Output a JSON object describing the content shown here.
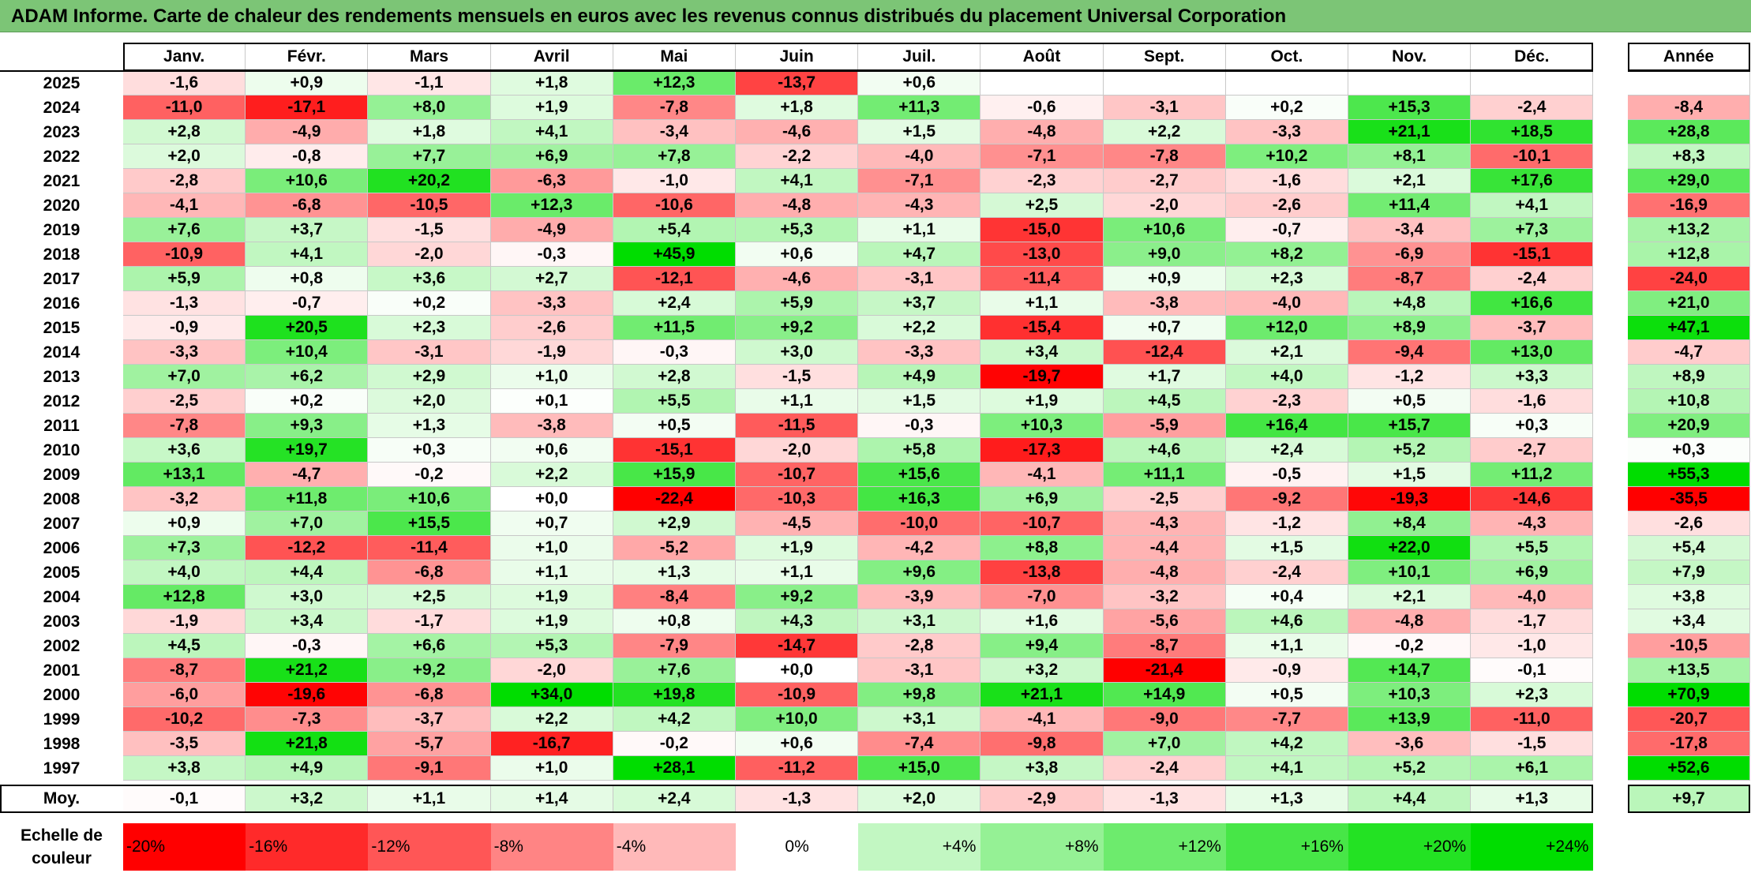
{
  "title": "ADAM Informe. Carte de chaleur des rendements mensuels en euros avec les revenus connus distribués du placement Universal Corporation",
  "chart_data": {
    "type": "heatmap",
    "title": "ADAM Informe. Carte de chaleur des rendements mensuels en euros avec les revenus connus distribués du placement Universal Corporation",
    "columns": [
      "Janv.",
      "Févr.",
      "Mars",
      "Avril",
      "Mai",
      "Juin",
      "Juil.",
      "Août",
      "Sept.",
      "Oct.",
      "Nov.",
      "Déc."
    ],
    "annual_label": "Année",
    "rows": [
      {
        "year": "2025",
        "months": [
          "-1,6",
          "+0,9",
          "-1,1",
          "+1,8",
          "+12,3",
          "-13,7",
          "+0,6",
          "",
          "",
          "",
          "",
          ""
        ],
        "annual": ""
      },
      {
        "year": "2024",
        "months": [
          "-11,0",
          "-17,1",
          "+8,0",
          "+1,9",
          "-7,8",
          "+1,8",
          "+11,3",
          "-0,6",
          "-3,1",
          "+0,2",
          "+15,3",
          "-2,4"
        ],
        "annual": "-8,4"
      },
      {
        "year": "2023",
        "months": [
          "+2,8",
          "-4,9",
          "+1,8",
          "+4,1",
          "-3,4",
          "-4,6",
          "+1,5",
          "-4,8",
          "+2,2",
          "-3,3",
          "+21,1",
          "+18,5"
        ],
        "annual": "+28,8"
      },
      {
        "year": "2022",
        "months": [
          "+2,0",
          "-0,8",
          "+7,7",
          "+6,9",
          "+7,8",
          "-2,2",
          "-4,0",
          "-7,1",
          "-7,8",
          "+10,2",
          "+8,1",
          "-10,1"
        ],
        "annual": "+8,3"
      },
      {
        "year": "2021",
        "months": [
          "-2,8",
          "+10,6",
          "+20,2",
          "-6,3",
          "-1,0",
          "+4,1",
          "-7,1",
          "-2,3",
          "-2,7",
          "-1,6",
          "+2,1",
          "+17,6"
        ],
        "annual": "+29,0"
      },
      {
        "year": "2020",
        "months": [
          "-4,1",
          "-6,8",
          "-10,5",
          "+12,3",
          "-10,6",
          "-4,8",
          "-4,3",
          "+2,5",
          "-2,0",
          "-2,6",
          "+11,4",
          "+4,1"
        ],
        "annual": "-16,9"
      },
      {
        "year": "2019",
        "months": [
          "+7,6",
          "+3,7",
          "-1,5",
          "-4,9",
          "+5,4",
          "+5,3",
          "+1,1",
          "-15,0",
          "+10,6",
          "-0,7",
          "-3,4",
          "+7,3"
        ],
        "annual": "+13,2"
      },
      {
        "year": "2018",
        "months": [
          "-10,9",
          "+4,1",
          "-2,0",
          "-0,3",
          "+45,9",
          "+0,6",
          "+4,7",
          "-13,0",
          "+9,0",
          "+8,2",
          "-6,9",
          "-15,1"
        ],
        "annual": "+12,8"
      },
      {
        "year": "2017",
        "months": [
          "+5,9",
          "+0,8",
          "+3,6",
          "+2,7",
          "-12,1",
          "-4,6",
          "-3,1",
          "-11,4",
          "+0,9",
          "+2,3",
          "-8,7",
          "-2,4"
        ],
        "annual": "-24,0"
      },
      {
        "year": "2016",
        "months": [
          "-1,3",
          "-0,7",
          "+0,2",
          "-3,3",
          "+2,4",
          "+5,9",
          "+3,7",
          "+1,1",
          "-3,8",
          "-4,0",
          "+4,8",
          "+16,6"
        ],
        "annual": "+21,0"
      },
      {
        "year": "2015",
        "months": [
          "-0,9",
          "+20,5",
          "+2,3",
          "-2,6",
          "+11,5",
          "+9,2",
          "+2,2",
          "-15,4",
          "+0,7",
          "+12,0",
          "+8,9",
          "-3,7"
        ],
        "annual": "+47,1"
      },
      {
        "year": "2014",
        "months": [
          "-3,3",
          "+10,4",
          "-3,1",
          "-1,9",
          "-0,3",
          "+3,0",
          "-3,3",
          "+3,4",
          "-12,4",
          "+2,1",
          "-9,4",
          "+13,0"
        ],
        "annual": "-4,7"
      },
      {
        "year": "2013",
        "months": [
          "+7,0",
          "+6,2",
          "+2,9",
          "+1,0",
          "+2,8",
          "-1,5",
          "+4,9",
          "-19,7",
          "+1,7",
          "+4,0",
          "-1,2",
          "+3,3"
        ],
        "annual": "+8,9"
      },
      {
        "year": "2012",
        "months": [
          "-2,5",
          "+0,2",
          "+2,0",
          "+0,1",
          "+5,5",
          "+1,1",
          "+1,5",
          "+1,9",
          "+4,5",
          "-2,3",
          "+0,5",
          "-1,6"
        ],
        "annual": "+10,8"
      },
      {
        "year": "2011",
        "months": [
          "-7,8",
          "+9,3",
          "+1,3",
          "-3,8",
          "+0,5",
          "-11,5",
          "-0,3",
          "+10,3",
          "-5,9",
          "+16,4",
          "+15,7",
          "+0,3"
        ],
        "annual": "+20,9"
      },
      {
        "year": "2010",
        "months": [
          "+3,6",
          "+19,7",
          "+0,3",
          "+0,6",
          "-15,1",
          "-2,0",
          "+5,8",
          "-17,3",
          "+4,6",
          "+2,4",
          "+5,2",
          "-2,7"
        ],
        "annual": "+0,3"
      },
      {
        "year": "2009",
        "months": [
          "+13,1",
          "-4,7",
          "-0,2",
          "+2,2",
          "+15,9",
          "-10,7",
          "+15,6",
          "-4,1",
          "+11,1",
          "-0,5",
          "+1,5",
          "+11,2"
        ],
        "annual": "+55,3"
      },
      {
        "year": "2008",
        "months": [
          "-3,2",
          "+11,8",
          "+10,6",
          "+0,0",
          "-22,4",
          "-10,3",
          "+16,3",
          "+6,9",
          "-2,5",
          "-9,2",
          "-19,3",
          "-14,6"
        ],
        "annual": "-35,5"
      },
      {
        "year": "2007",
        "months": [
          "+0,9",
          "+7,0",
          "+15,5",
          "+0,7",
          "+2,9",
          "-4,5",
          "-10,0",
          "-10,7",
          "-4,3",
          "-1,2",
          "+8,4",
          "-4,3"
        ],
        "annual": "-2,6"
      },
      {
        "year": "2006",
        "months": [
          "+7,3",
          "-12,2",
          "-11,4",
          "+1,0",
          "-5,2",
          "+1,9",
          "-4,2",
          "+8,8",
          "-4,4",
          "+1,5",
          "+22,0",
          "+5,5"
        ],
        "annual": "+5,4"
      },
      {
        "year": "2005",
        "months": [
          "+4,0",
          "+4,4",
          "-6,8",
          "+1,1",
          "+1,3",
          "+1,1",
          "+9,6",
          "-13,8",
          "-4,8",
          "-2,4",
          "+10,1",
          "+6,9"
        ],
        "annual": "+7,9"
      },
      {
        "year": "2004",
        "months": [
          "+12,8",
          "+3,0",
          "+2,5",
          "+1,9",
          "-8,4",
          "+9,2",
          "-3,9",
          "-7,0",
          "-3,2",
          "+0,4",
          "+2,1",
          "-4,0"
        ],
        "annual": "+3,8"
      },
      {
        "year": "2003",
        "months": [
          "-1,9",
          "+3,4",
          "-1,7",
          "+1,9",
          "+0,8",
          "+4,3",
          "+3,1",
          "+1,6",
          "-5,6",
          "+4,6",
          "-4,8",
          "-1,7"
        ],
        "annual": "+3,4"
      },
      {
        "year": "2002",
        "months": [
          "+4,5",
          "-0,3",
          "+6,6",
          "+5,3",
          "-7,9",
          "-14,7",
          "-2,8",
          "+9,4",
          "-8,7",
          "+1,1",
          "-0,2",
          "-1,0"
        ],
        "annual": "-10,5"
      },
      {
        "year": "2001",
        "months": [
          "-8,7",
          "+21,2",
          "+9,2",
          "-2,0",
          "+7,6",
          "+0,0",
          "-3,1",
          "+3,2",
          "-21,4",
          "-0,9",
          "+14,7",
          "-0,1"
        ],
        "annual": "+13,5"
      },
      {
        "year": "2000",
        "months": [
          "-6,0",
          "-19,6",
          "-6,8",
          "+34,0",
          "+19,8",
          "-10,9",
          "+9,8",
          "+21,1",
          "+14,9",
          "+0,5",
          "+10,3",
          "+2,3"
        ],
        "annual": "+70,9"
      },
      {
        "year": "1999",
        "months": [
          "-10,2",
          "-7,3",
          "-3,7",
          "+2,2",
          "+4,2",
          "+10,0",
          "+3,1",
          "-4,1",
          "-9,0",
          "-7,7",
          "+13,9",
          "-11,0"
        ],
        "annual": "-20,7"
      },
      {
        "year": "1998",
        "months": [
          "-3,5",
          "+21,8",
          "-5,7",
          "-16,7",
          "-0,2",
          "+0,6",
          "-7,4",
          "-9,8",
          "+7,0",
          "+4,2",
          "-3,6",
          "-1,5"
        ],
        "annual": "-17,8"
      },
      {
        "year": "1997",
        "months": [
          "+3,8",
          "+4,9",
          "-9,1",
          "+1,0",
          "+28,1",
          "-11,2",
          "+15,0",
          "+3,8",
          "-2,4",
          "+4,1",
          "+5,2",
          "+6,1"
        ],
        "annual": "+52,6"
      }
    ],
    "average": {
      "label": "Moy.",
      "months": [
        "-0,1",
        "+3,2",
        "+1,1",
        "+1,4",
        "+2,4",
        "-1,3",
        "+2,0",
        "-2,9",
        "-1,3",
        "+1,3",
        "+4,4",
        "+1,3"
      ],
      "annual": "+9,7"
    },
    "scale": {
      "label_line1": "Echelle de",
      "label_line2": "couleur",
      "stops": [
        "-20%",
        "-16%",
        "-12%",
        "-8%",
        "-4%",
        "0%",
        "+4%",
        "+8%",
        "+12%",
        "+16%",
        "+20%",
        "+24%"
      ],
      "stop_values": [
        -20,
        -16,
        -12,
        -8,
        -4,
        0,
        4,
        8,
        12,
        16,
        20,
        24
      ]
    },
    "colors": {
      "negative_max": "#ff0000",
      "neutral": "#ffffff",
      "positive_max": "#00dd00",
      "title_background": "#7cc576"
    }
  }
}
